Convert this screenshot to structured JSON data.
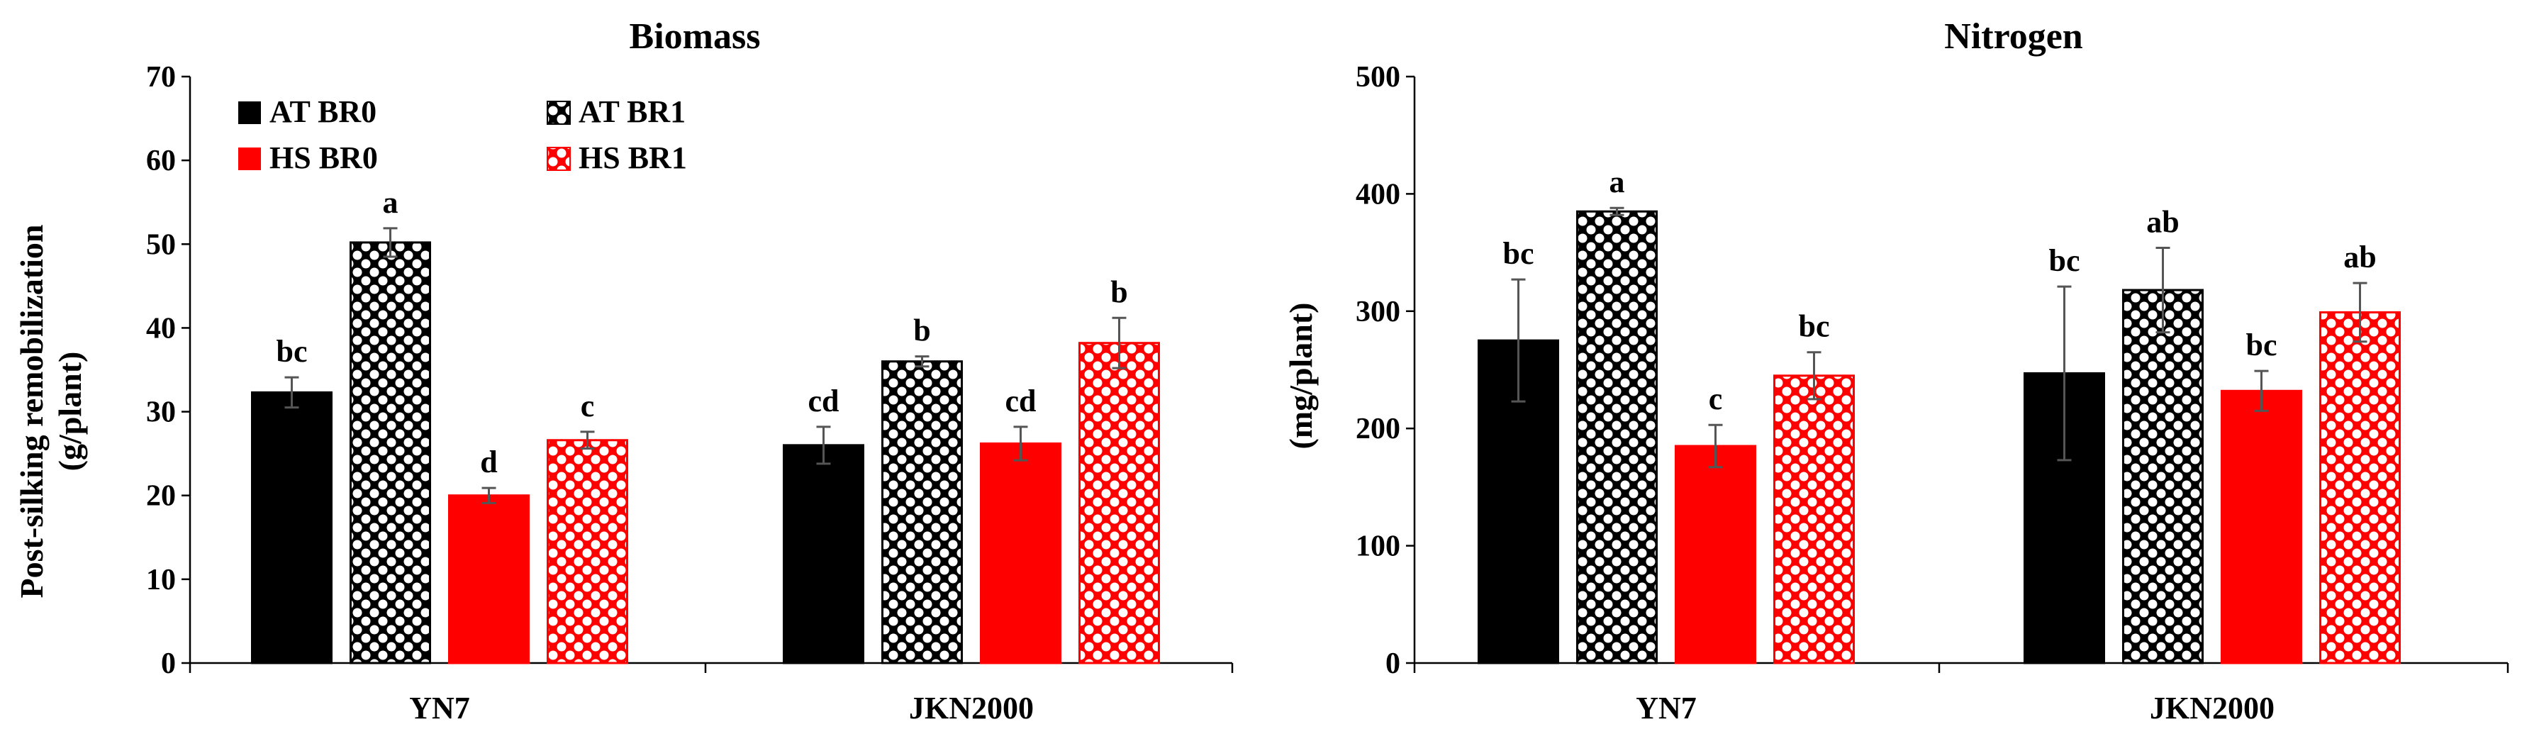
{
  "colors": {
    "black": "#000000",
    "red": "#ff0000",
    "white": "#ffffff",
    "error_bar": "#555555"
  },
  "legend": [
    {
      "label": "AT BR0",
      "color": "#000000",
      "pattern": "solid"
    },
    {
      "label": "AT BR1",
      "color": "#000000",
      "pattern": "checker"
    },
    {
      "label": "HS BR0",
      "color": "#ff0000",
      "pattern": "solid"
    },
    {
      "label": "HS BR1",
      "color": "#ff0000",
      "pattern": "checker"
    }
  ],
  "chart_data": [
    {
      "type": "bar",
      "title": "Biomass",
      "ylabel_line1": "Post-silking remobilization",
      "ylabel_line2": "(g/plant)",
      "xlabel": "",
      "ylim": [
        0,
        70
      ],
      "yticks": [
        0,
        10,
        20,
        30,
        40,
        50,
        60,
        70
      ],
      "ytick_labels": [
        "0",
        "10",
        "20",
        "30",
        "40",
        "50",
        "60",
        "70"
      ],
      "categories": [
        "YN7",
        "JKN2000"
      ],
      "series": [
        {
          "name": "AT BR0",
          "values": [
            32.3,
            26.0
          ],
          "errors": [
            1.8,
            2.2
          ],
          "letters": [
            "bc",
            "cd"
          ]
        },
        {
          "name": "AT BR1",
          "values": [
            50.2,
            36.0
          ],
          "errors": [
            1.7,
            0.6
          ],
          "letters": [
            "a",
            "b"
          ]
        },
        {
          "name": "HS BR0",
          "values": [
            20.0,
            26.2
          ],
          "errors": [
            0.9,
            2.0
          ],
          "letters": [
            "d",
            "cd"
          ]
        },
        {
          "name": "HS BR1",
          "values": [
            26.6,
            38.2
          ],
          "errors": [
            1.0,
            3.0
          ],
          "letters": [
            "c",
            "b"
          ]
        }
      ]
    },
    {
      "type": "bar",
      "title": "Nitrogen",
      "ylabel_line1": "(mg/plant)",
      "xlabel": "",
      "ylim": [
        0,
        500
      ],
      "yticks": [
        0,
        100,
        200,
        300,
        400,
        500
      ],
      "ytick_labels": [
        "0",
        "100",
        "200",
        "300",
        "400",
        "500"
      ],
      "categories": [
        "YN7",
        "JKN2000"
      ],
      "series": [
        {
          "name": "AT BR0",
          "values": [
            275,
            247
          ],
          "errors": [
            52,
            74
          ],
          "letters": [
            "bc",
            "bc"
          ]
        },
        {
          "name": "AT BR1",
          "values": [
            385,
            318
          ],
          "errors": [
            3,
            36
          ],
          "letters": [
            "a",
            "ab"
          ]
        },
        {
          "name": "HS BR0",
          "values": [
            185,
            232
          ],
          "errors": [
            18,
            17
          ],
          "letters": [
            "c",
            "bc"
          ]
        },
        {
          "name": "HS BR1",
          "values": [
            245,
            299
          ],
          "errors": [
            20,
            25
          ],
          "letters": [
            "bc",
            "ab"
          ]
        }
      ]
    }
  ]
}
